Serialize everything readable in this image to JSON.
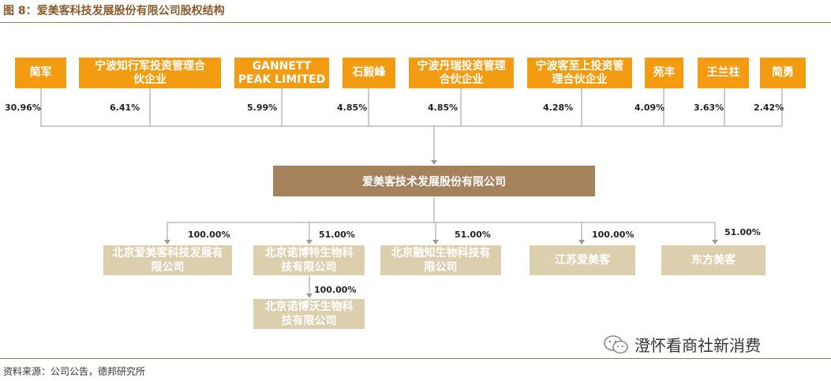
{
  "title": "图 8：爱美客科技发展股份有限公司股权结构",
  "source": "资料来源：公司公告，德邦研究所",
  "watermark": "澄怀看商社新消费",
  "company": "爱美客技术发展股份有限公司",
  "shareholders": [
    {
      "name": "简军",
      "pct": "30.96%"
    },
    {
      "name": "宁波知行军投资管理合伙企业",
      "pct": "6.41%"
    },
    {
      "name": "GANNETT PEAK LIMITED",
      "pct": "5.99%"
    },
    {
      "name": "石毅峰",
      "pct": "4.85%"
    },
    {
      "name": "宁波丹瑞投资管理合伙企业",
      "pct": "4.85%"
    },
    {
      "name": "宁波客至上投资管理合伙企业",
      "pct": "4.28%"
    },
    {
      "name": "苑丰",
      "pct": "4.09%"
    },
    {
      "name": "王兰柱",
      "pct": "3.63%"
    },
    {
      "name": "简勇",
      "pct": "2.42%"
    }
  ],
  "subsidiaries": [
    {
      "name": "北京爱美客科技发展有限公司",
      "pct": "100.00%"
    },
    {
      "name": "北京诺博特生物科技有限公司",
      "pct": "51.00%"
    },
    {
      "name": "北京融知生物科技有限公司",
      "pct": "51.00%"
    },
    {
      "name": "江苏爱美客",
      "pct": "100.00%"
    },
    {
      "name": "东方美客",
      "pct": "51.00%"
    }
  ],
  "sub_subsidiary": {
    "name": "北京诺博沃生物科技有限公司",
    "pct": "100.00%"
  }
}
